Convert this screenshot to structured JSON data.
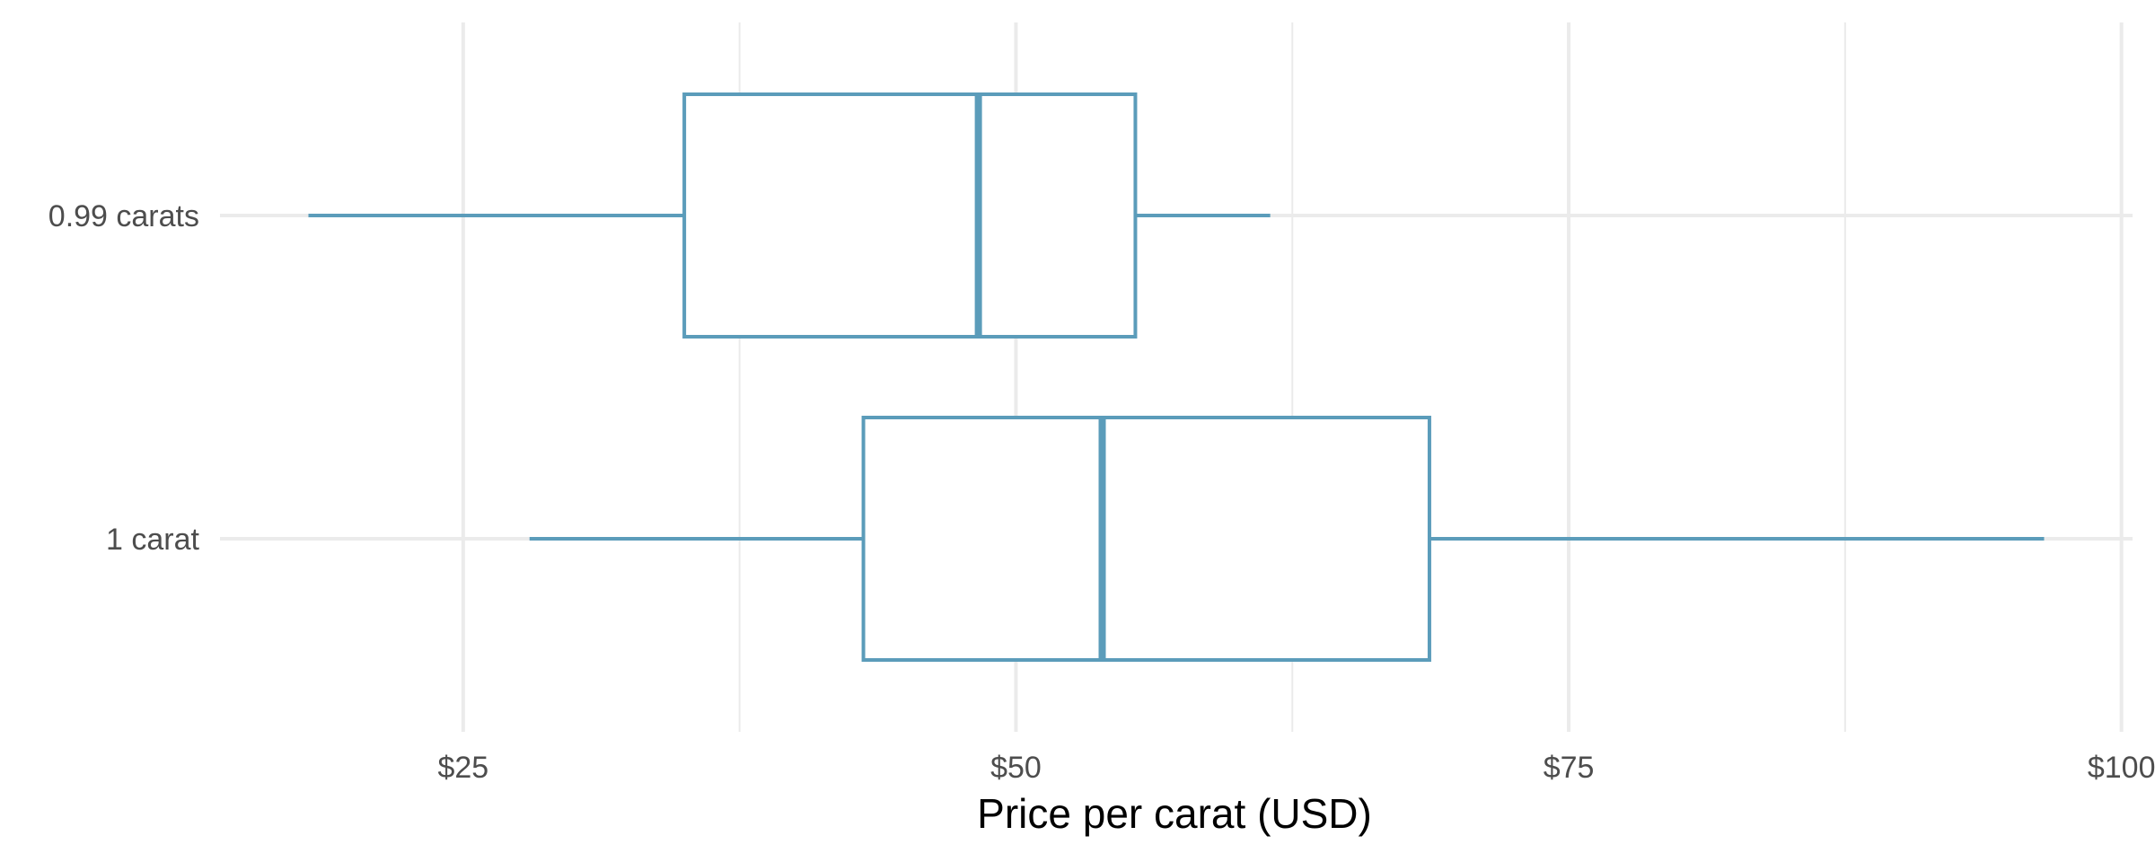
{
  "chart_data": {
    "type": "boxplot",
    "orientation": "horizontal",
    "title": "",
    "xlabel": "Price per carat (USD)",
    "ylabel": "",
    "xlim": [
      14,
      100.5
    ],
    "x_ticks": [
      {
        "value": 25,
        "label": "$25"
      },
      {
        "value": 50,
        "label": "$50"
      },
      {
        "value": 75,
        "label": "$75"
      },
      {
        "value": 100,
        "label": "$100"
      }
    ],
    "x_minor_gridlines": [
      37.5,
      62.5,
      87.5
    ],
    "categories": [
      "0.99 carats",
      "1 carat"
    ],
    "series": [
      {
        "min": 18,
        "q1": 35,
        "median": 48.3,
        "q3": 55.4,
        "max": 61.5
      },
      {
        "min": 28,
        "q1": 43.1,
        "median": 53.9,
        "q3": 68.7,
        "max": 96.5
      }
    ],
    "grid": true,
    "legend": "none",
    "colors": {
      "box": "#5b9cba",
      "grid": "#ebebeb",
      "background": "#ffffff"
    }
  }
}
